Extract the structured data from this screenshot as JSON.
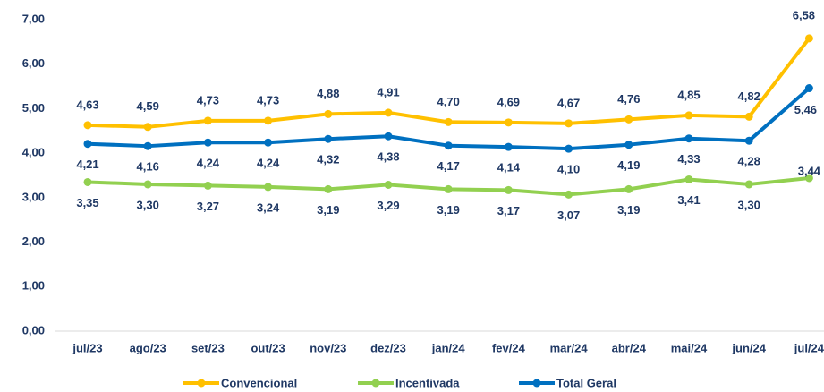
{
  "chart_data": {
    "type": "line",
    "categories": [
      "jul/23",
      "ago/23",
      "set/23",
      "out/23",
      "nov/23",
      "dez/23",
      "jan/24",
      "fev/24",
      "mar/24",
      "abr/24",
      "mai/24",
      "jun/24",
      "jul/24"
    ],
    "series": [
      {
        "name": "Convencional",
        "color": "#FFC000",
        "values": [
          4.63,
          4.59,
          4.73,
          4.73,
          4.88,
          4.91,
          4.7,
          4.69,
          4.67,
          4.76,
          4.85,
          4.82,
          6.58
        ],
        "value_labels": [
          "4,63",
          "4,59",
          "4,73",
          "4,73",
          "4,88",
          "4,91",
          "4,70",
          "4,69",
          "4,67",
          "4,76",
          "4,85",
          "4,82",
          "6,58"
        ]
      },
      {
        "name": "Incentivada",
        "color": "#92D050",
        "values": [
          3.35,
          3.3,
          3.27,
          3.24,
          3.19,
          3.29,
          3.19,
          3.17,
          3.07,
          3.19,
          3.41,
          3.3,
          3.44
        ],
        "value_labels": [
          "3,35",
          "3,30",
          "3,27",
          "3,24",
          "3,19",
          "3,29",
          "3,19",
          "3,17",
          "3,07",
          "3,19",
          "3,41",
          "3,30",
          "3,44"
        ]
      },
      {
        "name": "Total Geral",
        "color": "#0070C0",
        "values": [
          4.21,
          4.16,
          4.24,
          4.24,
          4.32,
          4.38,
          4.17,
          4.14,
          4.1,
          4.19,
          4.33,
          4.28,
          5.46
        ],
        "value_labels": [
          "4,21",
          "4,16",
          "4,24",
          "4,24",
          "4,32",
          "4,38",
          "4,17",
          "4,14",
          "4,10",
          "4,19",
          "4,33",
          "4,28",
          "5,46"
        ]
      }
    ],
    "ylim": [
      0,
      7
    ],
    "yticks": [
      {
        "value": 0,
        "label": "0,00"
      },
      {
        "value": 1,
        "label": "1,00"
      },
      {
        "value": 2,
        "label": "2,00"
      },
      {
        "value": 3,
        "label": "3,00"
      },
      {
        "value": 4,
        "label": "4,00"
      },
      {
        "value": 5,
        "label": "5,00"
      },
      {
        "value": 6,
        "label": "6,00"
      },
      {
        "value": 7,
        "label": "7,00"
      }
    ],
    "grid": false,
    "legend": "bottom"
  }
}
